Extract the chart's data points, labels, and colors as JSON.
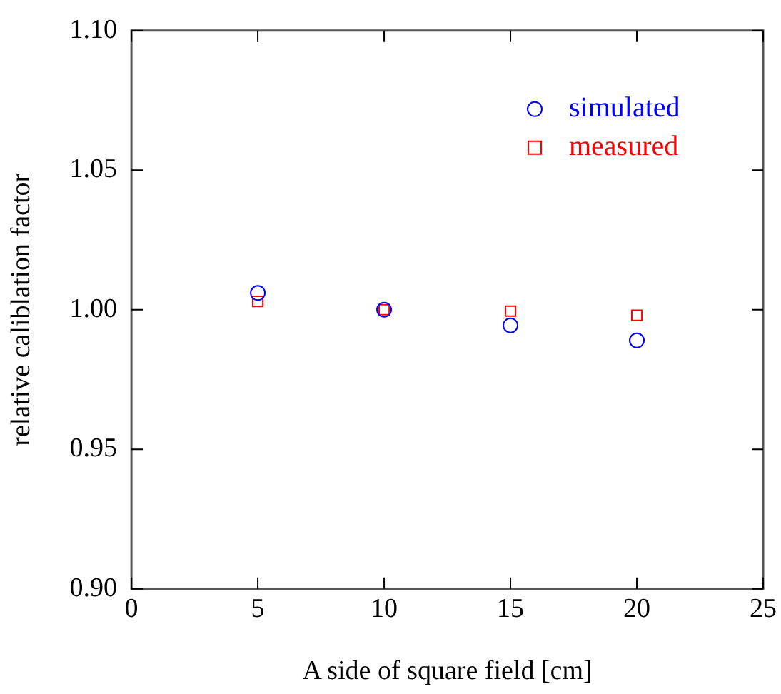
{
  "chart_data": {
    "type": "scatter",
    "xlabel": "A side of square field [cm]",
    "ylabel": "relative caliblation factor",
    "xlim": [
      0,
      25
    ],
    "xticks": [
      0,
      5,
      10,
      15,
      20,
      25
    ],
    "ylim": [
      0.9,
      1.1
    ],
    "yticks": [
      {
        "value": 0.9,
        "label": "0.90"
      },
      {
        "value": 0.95,
        "label": "0.95"
      },
      {
        "value": 1.0,
        "label": "1.00"
      },
      {
        "value": 1.05,
        "label": "1.05"
      },
      {
        "value": 1.1,
        "label": "1.10"
      }
    ],
    "legend": "top right",
    "grid": false,
    "series": [
      {
        "name": "simulated",
        "color": "#0000ff",
        "marker": "circle",
        "x": [
          5,
          10,
          15,
          20
        ],
        "values": [
          1.006,
          1.0,
          0.9944,
          0.989
        ]
      },
      {
        "name": "measured",
        "color": "#ff0000",
        "marker": "square",
        "x": [
          5,
          10,
          15,
          20
        ],
        "values": [
          1.003,
          1.0,
          0.9995,
          0.998
        ]
      }
    ]
  }
}
